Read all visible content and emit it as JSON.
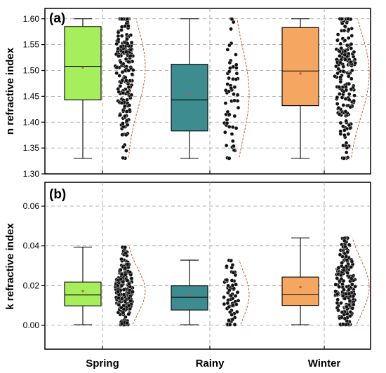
{
  "chart_data": [
    {
      "type": "box",
      "panel_label": "(a)",
      "ylabel": "n refractive index",
      "ylim": [
        1.3,
        1.62
      ],
      "yticks": [
        "1.30",
        "1.35",
        "1.40",
        "1.45",
        "1.50",
        "1.55",
        "1.60"
      ],
      "categories": [
        "Spring",
        "Rainy",
        "Winter"
      ],
      "grid": true,
      "boxes": [
        {
          "category": "Spring",
          "color": "#a6ee5c",
          "whisker_low": 1.33,
          "q1": 1.443,
          "median": 1.508,
          "mean": 1.506,
          "q3": 1.585,
          "whisker_high": 1.6
        },
        {
          "category": "Rainy",
          "color": "#3d8c8f",
          "whisker_low": 1.33,
          "q1": 1.383,
          "median": 1.443,
          "mean": 1.454,
          "q3": 1.512,
          "whisker_high": 1.6
        },
        {
          "category": "Winter",
          "color": "#f5a762",
          "whisker_low": 1.33,
          "q1": 1.432,
          "median": 1.499,
          "mean": 1.494,
          "q3": 1.583,
          "whisker_high": 1.6
        }
      ],
      "distribution_fit": [
        {
          "category": "Spring",
          "mean": 1.506,
          "sd": 0.079
        },
        {
          "category": "Rainy",
          "mean": 1.454,
          "sd": 0.085
        },
        {
          "category": "Winter",
          "mean": 1.494,
          "sd": 0.084
        }
      ]
    },
    {
      "type": "box",
      "panel_label": "(b)",
      "ylabel": "k refractive index",
      "ylim": [
        -0.012,
        0.072
      ],
      "yticks": [
        "0.00",
        "0.02",
        "0.04",
        "0.06"
      ],
      "categories": [
        "Spring",
        "Rainy",
        "Winter"
      ],
      "grid": true,
      "boxes": [
        {
          "category": "Spring",
          "color": "#a6ee5c",
          "whisker_low": 0.0003,
          "q1": 0.0098,
          "median": 0.0153,
          "mean": 0.0172,
          "q3": 0.0218,
          "whisker_high": 0.0394
        },
        {
          "category": "Rainy",
          "color": "#3d8c8f",
          "whisker_low": 0.0003,
          "q1": 0.0077,
          "median": 0.0141,
          "mean": 0.0155,
          "q3": 0.0199,
          "whisker_high": 0.0328
        },
        {
          "category": "Winter",
          "color": "#f5a762",
          "whisker_low": 0.0003,
          "q1": 0.01,
          "median": 0.0154,
          "mean": 0.0192,
          "q3": 0.0243,
          "whisker_high": 0.044
        }
      ],
      "distribution_fit": [
        {
          "category": "Spring",
          "mean": 0.0172,
          "sd": 0.011
        },
        {
          "category": "Rainy",
          "mean": 0.0155,
          "sd": 0.012
        },
        {
          "category": "Winter",
          "mean": 0.0192,
          "sd": 0.014
        }
      ]
    }
  ],
  "colors": {
    "mean_marker": "#d05050",
    "fit_line": "#cc3b2a",
    "points": "#111111",
    "grid": "#9a9a9a"
  }
}
